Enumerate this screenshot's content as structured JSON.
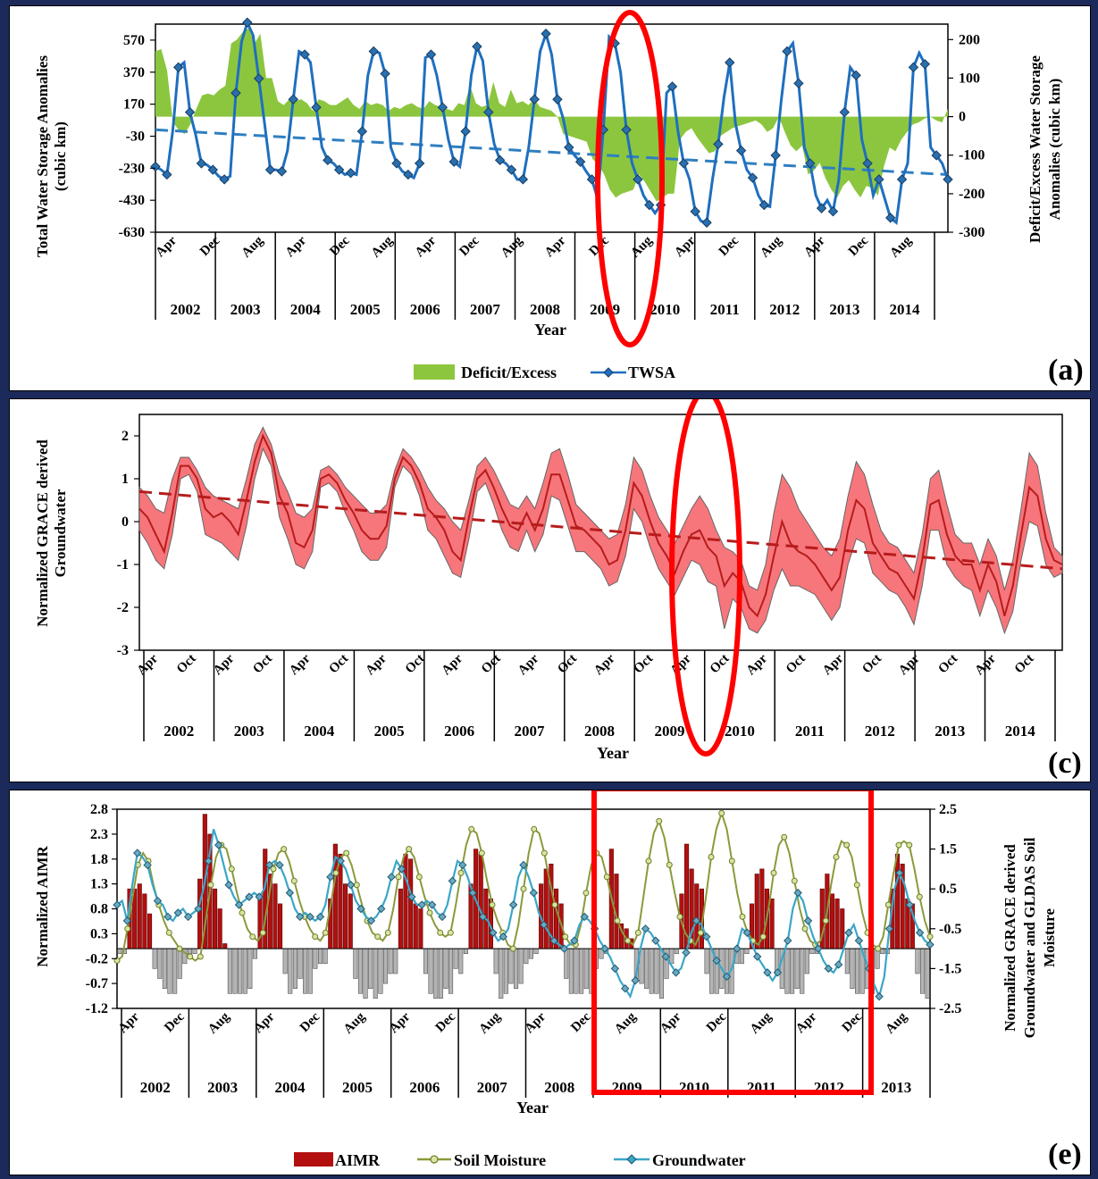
{
  "panels": {
    "a": {
      "label": "(a)",
      "x_title": "Year",
      "y_left_title_1": "Total Water Storage Anomalies",
      "y_left_title_2": "(cubic km)",
      "y_right_title_1": "Deficit/Excess Water Storage",
      "y_right_title_2": "Anomalies (cubic km)",
      "legend": [
        "Deficit/Excess",
        "TWSA"
      ]
    },
    "c": {
      "label": "(c)",
      "x_title": "Year",
      "y_title_1": "Normalized GRACE derived",
      "y_title_2": "Groundwater"
    },
    "e": {
      "label": "(e)",
      "x_title": "Year",
      "y_left_title": "Normalized AIMR",
      "y_right_title_1": "Normalized GRACE derived",
      "y_right_title_2": "Groundwater and GLDAS Soil",
      "y_right_title_3": "Moisture",
      "legend": [
        "AIMR",
        "Soil Moisture",
        "Groundwater"
      ]
    }
  },
  "chart_data": [
    {
      "id": "a",
      "type": "line",
      "colors": {
        "twsa": "#1f6fbf",
        "deficit": "#8cc63f",
        "trend": "#2f7fc0"
      },
      "y_left_ticks": [
        570,
        370,
        170,
        -30,
        -230,
        -430,
        -630
      ],
      "ylim_left": [
        -630,
        670
      ],
      "y_right_ticks": [
        200,
        100,
        0,
        -100,
        -200,
        -300
      ],
      "ylim_right": [
        -300,
        240
      ],
      "month_labels": [
        "Apr",
        "Dec",
        "Aug",
        "Apr",
        "Dec",
        "Aug",
        "Apr",
        "Dec",
        "Aug",
        "Apr",
        "Dec",
        "Aug",
        "Apr",
        "Dec",
        "Aug",
        "Apr",
        "Dec",
        "Aug"
      ],
      "year_labels": [
        "2002",
        "2003",
        "2004",
        "2005",
        "2006",
        "2007",
        "2008",
        "2009",
        "2010",
        "2011",
        "2012",
        "2013",
        "2014"
      ],
      "trend": [
        10,
        -270
      ],
      "deficit_excess": [
        170,
        175,
        120,
        -15,
        -35,
        -45,
        -20,
        20,
        55,
        60,
        55,
        70,
        80,
        190,
        200,
        220,
        230,
        190,
        215,
        100,
        100,
        40,
        30,
        45,
        40,
        45,
        35,
        15,
        45,
        40,
        30,
        30,
        40,
        50,
        30,
        20,
        40,
        30,
        35,
        30,
        15,
        25,
        20,
        30,
        35,
        25,
        20,
        40,
        30,
        25,
        20,
        15,
        35,
        30,
        80,
        35,
        25,
        30,
        90,
        35,
        25,
        70,
        35,
        40,
        30,
        45,
        25,
        20,
        15,
        0,
        -45,
        -50,
        -55,
        -60,
        -65,
        -110,
        -125,
        -150,
        -190,
        -210,
        -200,
        -195,
        -190,
        -150,
        -170,
        -195,
        -220,
        -210,
        -200,
        -200,
        -60,
        -40,
        -30,
        -55,
        -75,
        -95,
        -90,
        -50,
        -40,
        -30,
        -25,
        -20,
        -15,
        -10,
        -20,
        -40,
        -30,
        0,
        -40,
        -75,
        -90,
        -75,
        -150,
        -140,
        -120,
        -160,
        -190,
        -210,
        -180,
        -165,
        -190,
        -210,
        -180,
        -185,
        -205,
        -130,
        -80,
        -90,
        -60,
        -40,
        -20,
        -15,
        -5,
        0,
        -10,
        -15,
        20
      ],
      "twsa": [
        -220,
        -240,
        -270,
        0,
        400,
        430,
        120,
        -20,
        -200,
        -210,
        -240,
        -280,
        -300,
        -280,
        240,
        560,
        680,
        600,
        330,
        50,
        -240,
        -240,
        -250,
        -120,
        200,
        500,
        480,
        430,
        150,
        -100,
        -180,
        -200,
        -240,
        -270,
        -260,
        -270,
        0,
        350,
        500,
        490,
        360,
        -100,
        -200,
        -250,
        -270,
        -290,
        -200,
        460,
        480,
        350,
        150,
        -50,
        -190,
        -220,
        0,
        350,
        530,
        440,
        120,
        -80,
        -180,
        -200,
        -240,
        -300,
        -300,
        -100,
        200,
        500,
        610,
        480,
        200,
        80,
        -100,
        -150,
        -190,
        -250,
        -300,
        -420,
        10,
        590,
        550,
        370,
        10,
        -200,
        -300,
        -400,
        -460,
        -510,
        -460,
        240,
        280,
        0,
        -200,
        -300,
        -500,
        -560,
        -570,
        -300,
        -80,
        210,
        430,
        50,
        -120,
        -240,
        -290,
        -400,
        -460,
        -470,
        -150,
        200,
        500,
        550,
        300,
        -100,
        -200,
        -400,
        -480,
        -430,
        -500,
        -300,
        120,
        400,
        350,
        -50,
        -200,
        -400,
        -300,
        -420,
        -540,
        -570,
        -300,
        -200,
        400,
        490,
        420,
        -100,
        -150,
        -200,
        -300
      ]
    },
    {
      "id": "c",
      "type": "area",
      "colors": {
        "band": "#f7767b",
        "band_edge": "#666666",
        "line": "#b71c1c",
        "trend": "#b71c1c"
      },
      "y_ticks": [
        2,
        1,
        0,
        -1,
        -2,
        -3
      ],
      "ylim": [
        -3,
        2.5
      ],
      "month_labels": [
        "Apr",
        "Oct",
        "Apr",
        "Oct",
        "Apr",
        "Oct",
        "Apr",
        "Oct",
        "Apr",
        "Oct",
        "Apr",
        "Oct",
        "Apr",
        "Oct",
        "Apr",
        "Oct",
        "Apr",
        "Oct",
        "Apr",
        "Oct",
        "Apr",
        "Oct",
        "Apr",
        "Oct"
      ],
      "year_labels": [
        "2002",
        "2003",
        "2004",
        "2005",
        "2006",
        "2007",
        "2008",
        "2009",
        "2010",
        "2011",
        "2012",
        "2013",
        "2014"
      ],
      "trend": [
        0.7,
        -1.1
      ],
      "mean": [
        0.3,
        0.1,
        -0.3,
        -0.7,
        0.2,
        1.3,
        1.3,
        1.0,
        0.3,
        0.1,
        0.2,
        0,
        -0.3,
        0.5,
        1.4,
        2.0,
        1.6,
        0.6,
        0.2,
        -0.5,
        -0.6,
        -0.2,
        1.0,
        1.1,
        0.9,
        0.5,
        0.2,
        -0.2,
        -0.4,
        -0.4,
        -0.1,
        1.0,
        1.5,
        1.3,
        0.9,
        0.3,
        0.1,
        -0.2,
        -0.7,
        -0.9,
        0.1,
        1.0,
        1.2,
        0.8,
        0.3,
        -0.1,
        -0.2,
        0.2,
        -0.2,
        0.3,
        1.1,
        1.1,
        0.5,
        -0.1,
        -0.2,
        -0.4,
        -0.6,
        -1.0,
        -0.9,
        -0.2,
        0.9,
        0.6,
        0,
        -0.5,
        -0.8,
        -1.2,
        -0.7,
        -0.3,
        -0.2,
        -0.6,
        -0.8,
        -1.5,
        -1.2,
        -1.4,
        -2.0,
        -2.2,
        -1.7,
        -0.8,
        0,
        -0.5,
        -0.7,
        -0.8,
        -1.0,
        -1.3,
        -1.6,
        -1.3,
        -0.2,
        0.5,
        0.3,
        -0.5,
        -0.8,
        -1.1,
        -1.2,
        -1.5,
        -1.8,
        -0.9,
        0.4,
        0.5,
        -0.3,
        -0.8,
        -1.0,
        -1.0,
        -1.6,
        -1.0,
        -1.4,
        -2.2,
        -1.5,
        -0.3,
        0.8,
        0.6,
        -0.4,
        -0.9,
        -1.0
      ],
      "upper": [
        0.8,
        0.6,
        0.3,
        0.2,
        1.0,
        1.5,
        1.5,
        1.2,
        0.8,
        0.6,
        0.5,
        0.4,
        0.3,
        1.0,
        1.8,
        2.2,
        1.8,
        1.1,
        0.7,
        0.2,
        0.1,
        0.3,
        1.2,
        1.3,
        1.1,
        0.8,
        0.6,
        0.4,
        0.2,
        0.2,
        0.4,
        1.2,
        1.7,
        1.5,
        1.2,
        0.8,
        0.5,
        0.3,
        0.0,
        -0.2,
        0.5,
        1.3,
        1.5,
        1.2,
        0.8,
        0.4,
        0.3,
        0.6,
        0.3,
        0.9,
        1.6,
        1.7,
        1.1,
        0.4,
        0.2,
        0.0,
        -0.2,
        -0.4,
        -0.3,
        0.4,
        1.5,
        1.2,
        0.6,
        0.1,
        -0.2,
        -0.5,
        -0.1,
        0.3,
        0.6,
        0.3,
        -0.2,
        -0.6,
        -0.7,
        -0.9,
        -1.5,
        -1.6,
        -1.0,
        0.2,
        1.1,
        0.8,
        0.3,
        0.0,
        -0.3,
        -0.6,
        -0.8,
        -0.4,
        0.6,
        1.4,
        1.1,
        0.4,
        -0.2,
        -0.5,
        -0.6,
        -0.9,
        -1.2,
        -0.3,
        1.0,
        1.2,
        0.4,
        -0.3,
        -0.5,
        -0.5,
        -1.0,
        -0.4,
        -0.8,
        -1.6,
        -0.9,
        0.3,
        1.6,
        1.3,
        0.2,
        -0.6,
        -0.8
      ],
      "lower": [
        -0.2,
        -0.5,
        -0.9,
        -1.1,
        -0.3,
        1.0,
        1.1,
        0.7,
        -0.3,
        -0.4,
        -0.5,
        -0.7,
        -0.9,
        -0.1,
        1.0,
        1.7,
        1.3,
        0.1,
        -0.4,
        -1.0,
        -1.1,
        -0.7,
        0.8,
        0.9,
        0.7,
        0.2,
        -0.2,
        -0.7,
        -0.9,
        -0.9,
        -0.6,
        0.8,
        1.3,
        1.1,
        0.6,
        -0.2,
        -0.4,
        -0.8,
        -1.2,
        -1.3,
        -0.4,
        0.7,
        0.9,
        0.4,
        -0.2,
        -0.6,
        -0.7,
        -0.2,
        -0.7,
        -0.3,
        0.6,
        0.5,
        -0.1,
        -0.7,
        -0.7,
        -0.9,
        -1.1,
        -1.5,
        -1.4,
        -0.8,
        0.3,
        0.0,
        -0.6,
        -1.1,
        -1.4,
        -1.7,
        -1.3,
        -0.9,
        -1.0,
        -1.4,
        -1.5,
        -2.5,
        -1.8,
        -2.0,
        -2.5,
        -2.6,
        -2.3,
        -1.6,
        -1.1,
        -1.5,
        -1.5,
        -1.6,
        -1.7,
        -2.0,
        -2.3,
        -2.0,
        -1.0,
        -0.4,
        -0.5,
        -1.2,
        -1.4,
        -1.6,
        -1.7,
        -2.0,
        -2.4,
        -1.5,
        -0.2,
        -0.2,
        -1.0,
        -1.3,
        -1.5,
        -1.6,
        -2.2,
        -1.6,
        -2.0,
        -2.6,
        -2.1,
        -0.9,
        0.0,
        -0.1,
        -1.0,
        -1.3,
        -1.2
      ]
    },
    {
      "id": "e",
      "type": "bar",
      "colors": {
        "aimr": "#b30f0f",
        "aimr_neg": "#b4b4b4",
        "soil": "#8a9a3b",
        "groundwater": "#3aa6c8"
      },
      "y_left_ticks": [
        2.8,
        2.3,
        1.8,
        1.3,
        0.8,
        0.3,
        -0.2,
        -0.7,
        -1.2
      ],
      "ylim_left": [
        -1.2,
        2.8
      ],
      "y_right_ticks": [
        2.5,
        1.5,
        0.5,
        -0.5,
        -1.5,
        -2.5
      ],
      "ylim_right": [
        -2.5,
        2.5
      ],
      "month_labels": [
        "Apr",
        "Dec",
        "Aug",
        "Apr",
        "Dec",
        "Aug",
        "Apr",
        "Dec",
        "Aug",
        "Apr",
        "Dec",
        "Aug",
        "Apr",
        "Dec",
        "Aug",
        "Apr",
        "Dec",
        "Aug"
      ],
      "year_labels": [
        "2002",
        "2003",
        "2004",
        "2005",
        "2006",
        "2007",
        "2008",
        "2009",
        "2010",
        "2011",
        "2012",
        "2013"
      ],
      "aimr": [
        -0.1,
        -0.1,
        1.2,
        1.2,
        1.3,
        1.1,
        0.7,
        -0.4,
        -0.6,
        -0.8,
        -0.9,
        -0.9,
        -0.6,
        -0.3,
        -0.1,
        -0.1,
        1.4,
        2.7,
        2.3,
        1.2,
        0.8,
        0.1,
        -0.9,
        -0.9,
        -0.9,
        -0.9,
        -0.8,
        -0.2,
        1.1,
        2.0,
        1.5,
        1.3,
        0.9,
        -0.5,
        -0.9,
        -0.8,
        -0.6,
        -0.9,
        -0.9,
        -0.4,
        -0.3,
        -0.3,
        1.0,
        2.1,
        1.9,
        1.3,
        1.1,
        -0.6,
        -0.9,
        -1.0,
        -0.8,
        -1.0,
        -0.9,
        -0.7,
        -0.5,
        -0.5,
        1.2,
        1.9,
        1.8,
        0.9,
        0.8,
        -0.5,
        -0.9,
        -1.0,
        -1.0,
        -0.8,
        -0.9,
        -0.4,
        -0.5,
        -0.1,
        1.3,
        2.0,
        1.9,
        1.2,
        1.0,
        -0.5,
        -1.0,
        -0.9,
        -0.7,
        -0.8,
        -0.7,
        -0.3,
        -0.2,
        -0.1,
        1.3,
        1.6,
        1.7,
        1.2,
        0.9,
        -0.6,
        -0.9,
        -0.9,
        -0.9,
        -0.8,
        -0.9,
        -0.4,
        -0.2,
        -0.1,
        2.0,
        1.5,
        0.5,
        0.4,
        0.2,
        -0.6,
        -0.7,
        -0.8,
        -0.9,
        -0.9,
        -1.0,
        -0.6,
        -0.3,
        -0.1,
        1.1,
        2.1,
        1.6,
        1.3,
        1.2,
        -0.5,
        -0.9,
        -0.9,
        -0.8,
        -0.9,
        -0.9,
        -0.3,
        -0.3,
        -0.1,
        0.9,
        1.5,
        1.6,
        1.2,
        1.0,
        -0.5,
        -0.8,
        -0.9,
        -0.9,
        -0.8,
        -0.9,
        -0.5,
        -0.1,
        -0.1,
        1.2,
        1.5,
        1.1,
        1.0,
        0.8,
        -0.5,
        -0.8,
        -0.9,
        -0.9,
        -0.8,
        -0.9,
        -0.4,
        -0.1,
        -0.1,
        1.2,
        1.9,
        1.7,
        1.0,
        0.9,
        -0.5,
        -0.9,
        -1.0
      ],
      "soil": [
        -1.3,
        -1.2,
        -0.5,
        0.3,
        1.1,
        1.4,
        1.2,
        0.6,
        0.1,
        -0.3,
        -0.6,
        -0.8,
        -1.0,
        -1.1,
        -1.2,
        -1.3,
        -1.2,
        -0.3,
        0.6,
        1.3,
        1.6,
        1.5,
        1.0,
        0.4,
        -0.1,
        -0.5,
        -0.7,
        -0.8,
        -0.6,
        0.2,
        1.0,
        1.4,
        1.5,
        1.2,
        0.7,
        0.2,
        -0.2,
        -0.5,
        -0.7,
        -0.8,
        -0.6,
        0.1,
        0.9,
        1.3,
        1.4,
        1.1,
        0.6,
        0.1,
        -0.3,
        -0.6,
        -0.7,
        -0.8,
        -0.6,
        0.0,
        0.8,
        1.3,
        1.5,
        1.3,
        0.8,
        0.3,
        -0.1,
        -0.4,
        -0.6,
        -0.7,
        -0.6,
        0.1,
        0.9,
        1.6,
        2.0,
        1.9,
        1.4,
        0.7,
        0.1,
        -0.3,
        -0.6,
        -0.9,
        -1.0,
        -0.4,
        0.5,
        1.4,
        2.0,
        1.9,
        1.4,
        0.7,
        0.1,
        -0.3,
        -0.7,
        -0.9,
        -0.9,
        -0.4,
        0.4,
        1.1,
        1.4,
        1.3,
        0.8,
        0.2,
        -0.3,
        -0.6,
        -0.8,
        -0.9,
        -0.6,
        0.3,
        1.2,
        1.9,
        2.2,
        1.8,
        1.1,
        0.4,
        -0.2,
        -0.6,
        -0.8,
        -0.9,
        -0.6,
        0.3,
        1.3,
        2.0,
        2.4,
        2.0,
        1.2,
        0.4,
        -0.2,
        -0.6,
        -0.8,
        -0.9,
        -0.7,
        0.0,
        0.9,
        1.6,
        1.8,
        1.4,
        0.7,
        0.0,
        -0.5,
        -0.8,
        -0.9,
        -0.8,
        -0.3,
        0.6,
        1.3,
        1.7,
        1.6,
        1.3,
        0.6,
        -0.1,
        -0.6,
        -0.9,
        -1.0,
        -0.7,
        0.1,
        0.9,
        1.6,
        1.7,
        1.6,
        1.0,
        0.3,
        -0.3,
        -0.7
      ],
      "groundwater": [
        0.1,
        0.2,
        -0.3,
        0.6,
        1.4,
        1.3,
        1.1,
        0.6,
        0.2,
        0.1,
        -0.2,
        -0.3,
        -0.1,
        0.0,
        -0.2,
        -0.1,
        0.0,
        0.5,
        1.2,
        2.0,
        1.6,
        1.1,
        0.6,
        0.3,
        0.1,
        0.2,
        0.3,
        0.4,
        0.3,
        0.5,
        1.1,
        1.2,
        1.1,
        0.8,
        0.4,
        0.0,
        -0.2,
        -0.1,
        -0.2,
        -0.3,
        -0.2,
        0.1,
        0.8,
        1.3,
        1.2,
        1.0,
        0.6,
        0.2,
        0.0,
        -0.2,
        -0.3,
        -0.2,
        0.0,
        0.3,
        0.8,
        1.2,
        1.0,
        0.7,
        0.3,
        0.1,
        0.1,
        0.2,
        0.1,
        -0.1,
        -0.2,
        0.1,
        0.7,
        1.2,
        1.1,
        0.8,
        0.4,
        0.1,
        -0.2,
        -0.3,
        -0.6,
        -0.8,
        -0.7,
        -0.5,
        0.1,
        0.8,
        1.1,
        0.8,
        0.4,
        -0.1,
        -0.4,
        -0.6,
        -0.8,
        -0.9,
        -1.0,
        -0.9,
        -0.8,
        -0.4,
        -0.2,
        -0.3,
        -0.5,
        -0.8,
        -1.0,
        -1.2,
        -1.5,
        -1.8,
        -2.0,
        -2.2,
        -1.8,
        -1.0,
        -0.5,
        -0.6,
        -0.8,
        -1.0,
        -1.2,
        -1.4,
        -1.6,
        -1.5,
        -1.1,
        -0.6,
        -0.3,
        -0.4,
        -0.7,
        -1.0,
        -1.3,
        -1.5,
        -1.7,
        -1.5,
        -1.0,
        -0.5,
        -0.6,
        -0.9,
        -1.2,
        -1.4,
        -1.6,
        -1.8,
        -1.6,
        -1.2,
        -0.8,
        0.0,
        0.4,
        0.2,
        -0.3,
        -0.7,
        -1.0,
        -1.3,
        -1.5,
        -1.6,
        -1.4,
        -1.0,
        -0.6,
        -0.4,
        -0.8,
        -1.2,
        -1.5,
        -1.9,
        -2.2,
        -1.7,
        -0.5,
        0.5,
        0.9,
        0.6,
        0.1,
        -0.3,
        -0.6,
        -0.8,
        -0.9
      ]
    }
  ]
}
